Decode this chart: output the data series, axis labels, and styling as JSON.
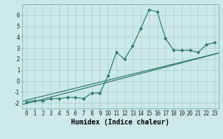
{
  "x": [
    0,
    1,
    2,
    3,
    4,
    5,
    6,
    7,
    8,
    9,
    10,
    11,
    12,
    13,
    14,
    15,
    16,
    17,
    18,
    19,
    20,
    21,
    22,
    23
  ],
  "y": [
    -1.9,
    -1.8,
    -1.8,
    -1.6,
    -1.6,
    -1.5,
    -1.5,
    -1.6,
    -1.1,
    -1.1,
    0.5,
    2.6,
    2.0,
    3.2,
    4.8,
    6.5,
    6.3,
    3.9,
    2.8,
    2.8,
    2.8,
    2.6,
    3.3,
    3.5
  ],
  "line_color": "#2e7d6e",
  "bg_color": "#cce8e8",
  "grid_color": "#aacccc",
  "xlabel": "Humidex (Indice chaleur)",
  "ylim": [
    -2.5,
    7.0
  ],
  "xlim": [
    -0.5,
    23.5
  ],
  "yticks": [
    -2,
    -1,
    0,
    1,
    2,
    3,
    4,
    5,
    6
  ],
  "xticks": [
    0,
    1,
    2,
    3,
    4,
    5,
    6,
    7,
    8,
    9,
    10,
    11,
    12,
    13,
    14,
    15,
    16,
    17,
    18,
    19,
    20,
    21,
    22,
    23
  ],
  "reg_line1": [
    -2.05,
    0.195
  ],
  "reg_line2": [
    -1.75,
    0.183
  ],
  "tick_fontsize": 5.5,
  "label_fontsize": 7.0
}
